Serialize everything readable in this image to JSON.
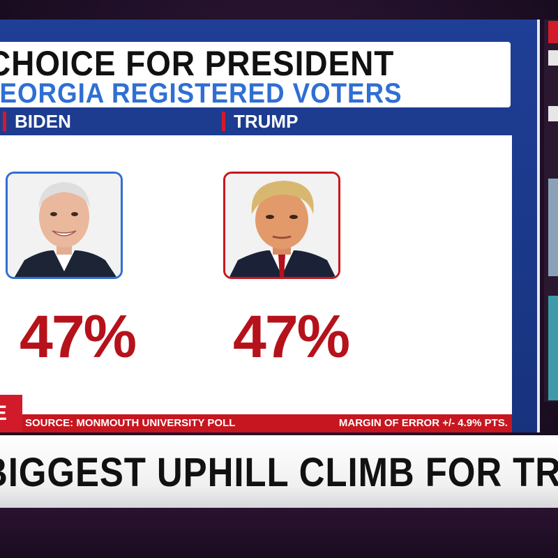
{
  "graphic": {
    "title_line1": "CHOICE FOR PRESIDENT",
    "title_line2": "GEORGIA REGISTERED VOTERS"
  },
  "candidates": [
    {
      "name": "BIDEN",
      "percent": "47%",
      "frame_color": "#2f6fd3"
    },
    {
      "name": "TRUMP",
      "percent": "47%",
      "frame_color": "#c7161f"
    }
  ],
  "footer": {
    "source": "SOURCE: MONMOUTH UNIVERSITY POLL",
    "margin": "MARGIN OF ERROR +/- 4.9% PTS.",
    "live_label": "E"
  },
  "chyron": {
    "headline": "BIGGEST UPHILL CLIMB FOR TRUMP REELECTION"
  },
  "colors": {
    "board_blue": "#1f3f96",
    "accent_red": "#c7161f",
    "title_blue": "#2f6fd3",
    "percent_red": "#b5121b"
  }
}
